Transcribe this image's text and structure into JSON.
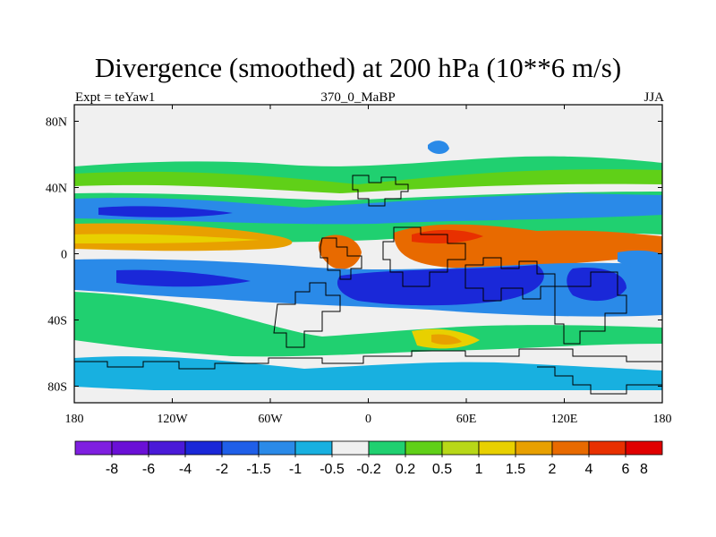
{
  "title": "Divergence (smoothed) at 200 hPa (10**6 m/s)",
  "subtitle_left": "Expt = teYaw1",
  "subtitle_center": "370_0_MaBP",
  "subtitle_right": "JJA",
  "map": {
    "lon_range": [
      -180,
      180
    ],
    "lat_range": [
      -90,
      90
    ],
    "x_ticks": [
      {
        "value": -180,
        "label": "180"
      },
      {
        "value": -120,
        "label": "120W"
      },
      {
        "value": -60,
        "label": "60W"
      },
      {
        "value": 0,
        "label": "0"
      },
      {
        "value": 60,
        "label": "60E"
      },
      {
        "value": 120,
        "label": "120E"
      },
      {
        "value": 180,
        "label": "180"
      }
    ],
    "y_ticks": [
      {
        "value": 80,
        "label": "80N"
      },
      {
        "value": 40,
        "label": "40N"
      },
      {
        "value": 0,
        "label": "0"
      },
      {
        "value": -40,
        "label": "40S"
      },
      {
        "value": -80,
        "label": "80S"
      }
    ]
  },
  "colorbar": {
    "colors": [
      "#7f1fe0",
      "#6a10d6",
      "#4a1ad8",
      "#1a28d8",
      "#1f5fe8",
      "#2a8ae8",
      "#18b0e0",
      "#f0f0f0",
      "#20d070",
      "#60d018",
      "#b8d818",
      "#e8d000",
      "#e8a000",
      "#e86a00",
      "#e83000",
      "#e00000"
    ],
    "labels": [
      "-8",
      "-6",
      "-4",
      "-2",
      "-1.5",
      "-1",
      "-0.5",
      "-0.2",
      "0.2",
      "0.5",
      "1",
      "1.5",
      "2",
      "4",
      "6",
      "8"
    ]
  }
}
